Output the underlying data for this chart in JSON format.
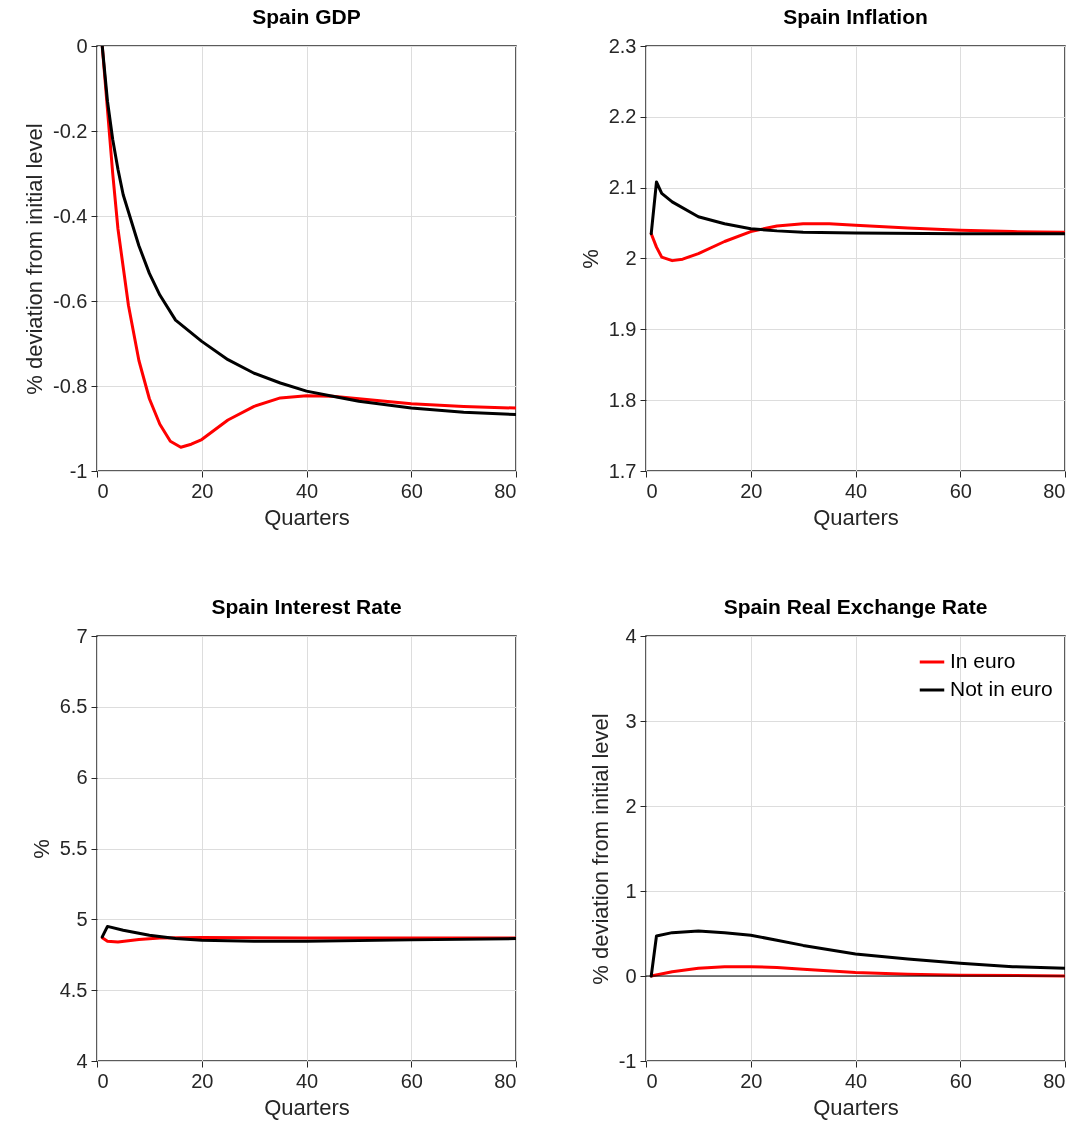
{
  "chart_data": [
    {
      "type": "line",
      "title": "Spain GDP",
      "xlabel": "Quarters",
      "ylabel": "% deviation from initial level",
      "xlim": [
        0,
        80
      ],
      "xticks": [
        0,
        20,
        40,
        60,
        80
      ],
      "ylim": [
        -1,
        0
      ],
      "yticks": [
        -1,
        -0.8,
        -0.6,
        -0.4,
        -0.2,
        0
      ],
      "grid": true,
      "legend": false,
      "series": [
        {
          "color": "#ff0000",
          "x": [
            1,
            2,
            3,
            4,
            5,
            6,
            8,
            10,
            12,
            14,
            16,
            18,
            20,
            25,
            30,
            35,
            40,
            45,
            50,
            60,
            70,
            80
          ],
          "values": [
            0,
            -0.15,
            -0.3,
            -0.43,
            -0.52,
            -0.61,
            -0.74,
            -0.83,
            -0.89,
            -0.93,
            -0.944,
            -0.937,
            -0.926,
            -0.88,
            -0.848,
            -0.828,
            -0.823,
            -0.824,
            -0.83,
            -0.842,
            -0.848,
            -0.852
          ]
        },
        {
          "color": "#000000",
          "x": [
            1,
            2,
            3,
            4,
            5,
            6,
            8,
            10,
            12,
            15,
            20,
            25,
            30,
            35,
            40,
            45,
            50,
            60,
            70,
            80
          ],
          "values": [
            0,
            -0.13,
            -0.22,
            -0.29,
            -0.35,
            -0.39,
            -0.47,
            -0.535,
            -0.586,
            -0.645,
            -0.695,
            -0.738,
            -0.77,
            -0.793,
            -0.812,
            -0.824,
            -0.836,
            -0.852,
            -0.862,
            -0.867
          ]
        }
      ]
    },
    {
      "type": "line",
      "title": "Spain Inflation",
      "xlabel": "Quarters",
      "ylabel": "%",
      "xlim": [
        0,
        80
      ],
      "xticks": [
        0,
        20,
        40,
        60,
        80
      ],
      "ylim": [
        1.7,
        2.3
      ],
      "yticks": [
        1.7,
        1.8,
        1.9,
        2,
        2.1,
        2.2,
        2.3
      ],
      "grid": true,
      "legend": false,
      "series": [
        {
          "color": "#ff0000",
          "x": [
            1,
            2,
            3,
            5,
            7,
            10,
            15,
            20,
            25,
            30,
            35,
            40,
            50,
            60,
            70,
            80
          ],
          "values": [
            2.035,
            2.016,
            2.002,
            1.997,
            1.999,
            2.007,
            2.024,
            2.038,
            2.046,
            2.049,
            2.049,
            2.047,
            2.043,
            2.04,
            2.038,
            2.037
          ]
        },
        {
          "color": "#000000",
          "x": [
            1,
            2,
            3,
            5,
            10,
            15,
            20,
            25,
            30,
            40,
            60,
            80
          ],
          "values": [
            2.035,
            2.108,
            2.092,
            2.08,
            2.059,
            2.049,
            2.042,
            2.039,
            2.037,
            2.036,
            2.035,
            2.035
          ]
        }
      ]
    },
    {
      "type": "line",
      "title": "Spain Interest Rate",
      "xlabel": "Quarters",
      "ylabel": "%",
      "xlim": [
        0,
        80
      ],
      "xticks": [
        0,
        20,
        40,
        60,
        80
      ],
      "ylim": [
        4,
        7
      ],
      "yticks": [
        4,
        4.5,
        5,
        5.5,
        6,
        6.5,
        7
      ],
      "grid": true,
      "legend": false,
      "series": [
        {
          "color": "#ff0000",
          "x": [
            1,
            2,
            4,
            8,
            12,
            20,
            40,
            60,
            80
          ],
          "values": [
            4.87,
            4.845,
            4.84,
            4.857,
            4.868,
            4.871,
            4.869,
            4.868,
            4.868
          ]
        },
        {
          "color": "#000000",
          "x": [
            1,
            2,
            5,
            10,
            15,
            20,
            30,
            40,
            60,
            80
          ],
          "values": [
            4.876,
            4.95,
            4.923,
            4.887,
            4.864,
            4.852,
            4.845,
            4.845,
            4.855,
            4.864
          ]
        }
      ]
    },
    {
      "type": "line",
      "title": "Spain Real Exchange Rate",
      "xlabel": "Quarters",
      "ylabel": "% deviation from initial level",
      "xlim": [
        0,
        80
      ],
      "xticks": [
        0,
        20,
        40,
        60,
        80
      ],
      "ylim": [
        -1,
        4
      ],
      "yticks": [
        -1,
        0,
        1,
        2,
        3,
        4
      ],
      "grid": true,
      "legend": "top right",
      "ref_lines": [
        {
          "axis": "y",
          "value": 0,
          "color": "#000000"
        }
      ],
      "series": [
        {
          "name": "In euro",
          "color": "#ff0000",
          "x": [
            1,
            5,
            10,
            15,
            20,
            25,
            30,
            40,
            50,
            60,
            80
          ],
          "values": [
            0,
            0.05,
            0.09,
            0.11,
            0.11,
            0.1,
            0.08,
            0.04,
            0.02,
            0.01,
            0
          ]
        },
        {
          "name": "Not in euro",
          "color": "#000000",
          "x": [
            1,
            2,
            5,
            10,
            15,
            20,
            25,
            30,
            40,
            50,
            60,
            70,
            80
          ],
          "values": [
            0,
            0.47,
            0.51,
            0.53,
            0.51,
            0.48,
            0.42,
            0.36,
            0.26,
            0.2,
            0.15,
            0.11,
            0.09
          ]
        }
      ]
    }
  ]
}
